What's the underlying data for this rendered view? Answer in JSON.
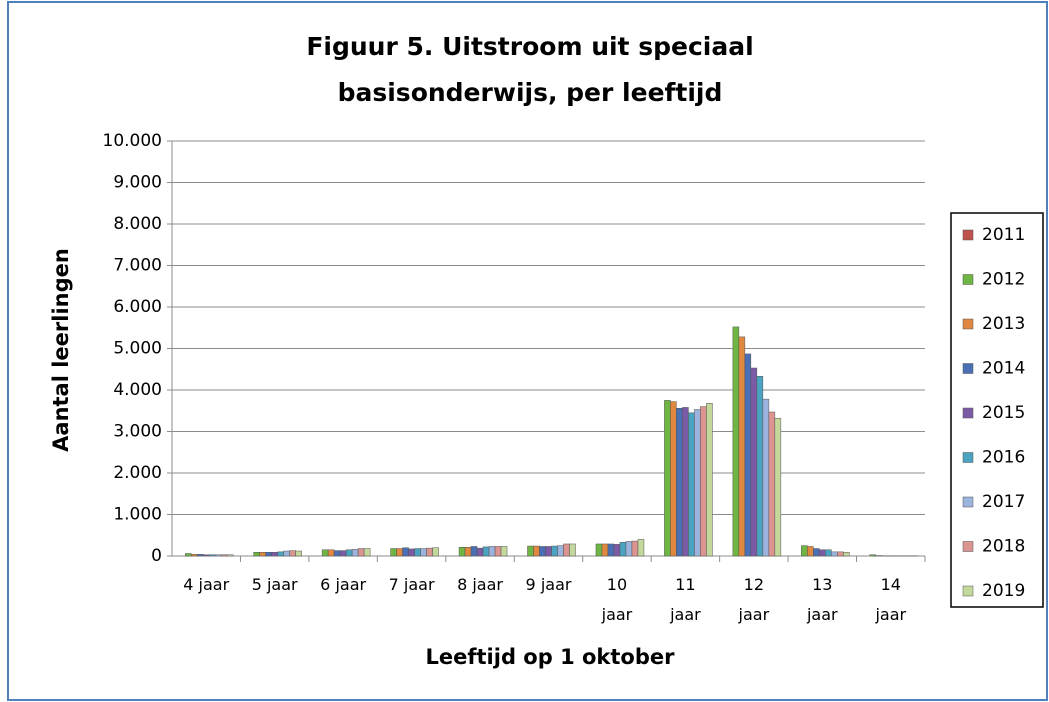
{
  "chart_data": {
    "type": "bar",
    "title": "Figuur 5. Uitstroom uit speciaal basisonderwijs, per leeftijd",
    "y_label": "Aantal leerlingen",
    "x_label": "Leeftijd op 1 oktober",
    "categories": [
      "4 jaar",
      "5 jaar",
      "6 jaar",
      "7 jaar",
      "8 jaar",
      "9 jaar",
      "10 jaar",
      "11 jaar",
      "12 jaar",
      "13 jaar",
      "14 jaar"
    ],
    "series": [
      {
        "name": "2011",
        "color": "#c0504d",
        "values": [
          null,
          null,
          null,
          null,
          null,
          null,
          null,
          null,
          null,
          null,
          null
        ]
      },
      {
        "name": "2012",
        "color": "#6fb543",
        "values": [
          60,
          90,
          150,
          180,
          210,
          240,
          290,
          3750,
          5520,
          250,
          30
        ]
      },
      {
        "name": "2013",
        "color": "#e0883f",
        "values": [
          40,
          90,
          150,
          180,
          210,
          240,
          290,
          3720,
          5280,
          230,
          10
        ]
      },
      {
        "name": "2014",
        "color": "#4a6fb5",
        "values": [
          40,
          90,
          130,
          200,
          230,
          230,
          290,
          3560,
          4870,
          180,
          5
        ]
      },
      {
        "name": "2015",
        "color": "#7b5ba6",
        "values": [
          30,
          90,
          130,
          170,
          190,
          230,
          280,
          3580,
          4530,
          150,
          5
        ]
      },
      {
        "name": "2016",
        "color": "#4aa3c0",
        "values": [
          30,
          100,
          150,
          180,
          220,
          240,
          330,
          3450,
          4330,
          150,
          5
        ]
      },
      {
        "name": "2017",
        "color": "#9bb3dd",
        "values": [
          30,
          120,
          160,
          180,
          230,
          250,
          350,
          3530,
          3780,
          100,
          5
        ]
      },
      {
        "name": "2018",
        "color": "#dc9490",
        "values": [
          30,
          130,
          180,
          190,
          230,
          290,
          360,
          3600,
          3470,
          100,
          5
        ]
      },
      {
        "name": "2019",
        "color": "#c4d89c",
        "values": [
          30,
          120,
          180,
          200,
          230,
          290,
          400,
          3680,
          3320,
          90,
          5
        ]
      }
    ],
    "ylim": [
      0,
      10000
    ],
    "yticks": [
      0,
      {
        "value": 1000,
        "label": "1.000"
      },
      {
        "value": 2000,
        "label": "2.000"
      },
      {
        "value": 3000,
        "label": "3.000"
      },
      {
        "value": 4000,
        "label": "4.000"
      },
      {
        "value": 5000,
        "label": "5.000"
      },
      {
        "value": 6000,
        "label": "6.000"
      },
      {
        "value": 7000,
        "label": "7.000"
      },
      {
        "value": 8000,
        "label": "8.000"
      },
      {
        "value": 9000,
        "label": "9.000"
      },
      {
        "value": 10000,
        "label": "10.000"
      }
    ],
    "grid": true,
    "legend": "right"
  }
}
